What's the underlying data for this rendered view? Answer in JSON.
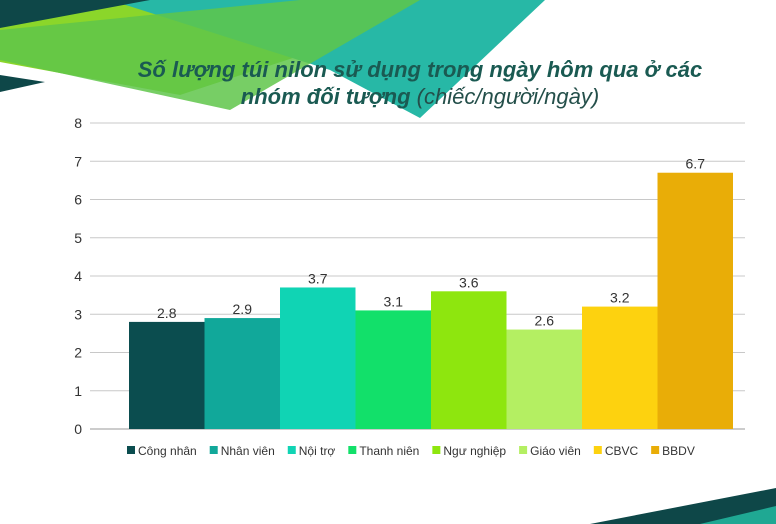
{
  "chart_data": {
    "type": "bar",
    "title_main": "Số lượng túi nilon sử dụng trong ngày hôm qua ở các nhóm đối tượng",
    "title_unit": "(chiếc/người/ngày)",
    "categories": [
      "Công nhân",
      "Nhân viên",
      "Nội trợ",
      "Thanh niên",
      "Ngư nghiệp",
      "Giáo viên",
      "CBVC",
      "BBDV"
    ],
    "values": [
      2.8,
      2.9,
      3.7,
      3.1,
      3.6,
      2.6,
      3.2,
      6.7
    ],
    "value_labels": [
      "2.8",
      "2.9",
      "3.7",
      "3.1",
      "3.6",
      "2.6",
      "3.2",
      "6.7"
    ],
    "colors": [
      "#0b4d4f",
      "#11a89a",
      "#10d4b4",
      "#12e06a",
      "#8ee60e",
      "#b4ef62",
      "#fdd20f",
      "#e9ad07"
    ],
    "ylim": [
      0,
      8
    ],
    "yticks": [
      "0",
      "1",
      "2",
      "3",
      "4",
      "5",
      "6",
      "7",
      "8"
    ],
    "grid": true,
    "legend_position": "bottom",
    "xlabel": "",
    "ylabel": ""
  }
}
